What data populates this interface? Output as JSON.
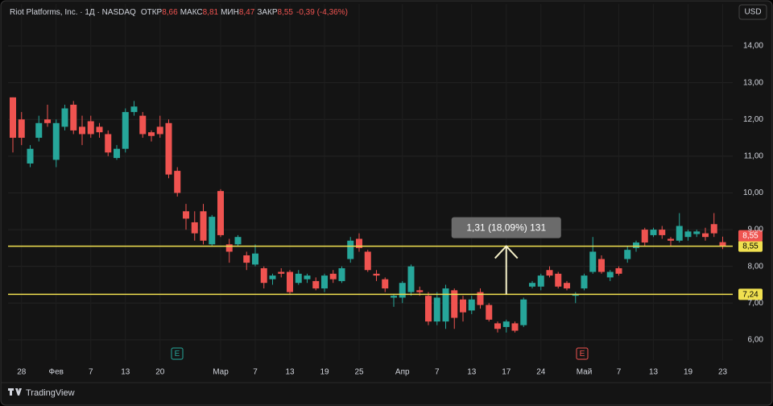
{
  "header": {
    "name": "Riot Platforms, Inc.",
    "interval": "1Д",
    "exchange": "NASDAQ",
    "stats": [
      {
        "label": "ОТКР",
        "value": "8,66"
      },
      {
        "label": "МАКС",
        "value": "8,81"
      },
      {
        "label": "МИН",
        "value": "8,47"
      },
      {
        "label": "ЗАКР",
        "value": "8,55"
      }
    ],
    "change": "-0,39 (-4,36%)",
    "currency": "USD"
  },
  "footer": {
    "brand": "TradingView"
  },
  "earnings": [
    {
      "label": "E",
      "color": "#26a69a"
    },
    {
      "label": "E",
      "color": "#ef5350"
    }
  ],
  "chart_data": {
    "type": "candlestick",
    "categories": [
      null,
      "28",
      null,
      null,
      null,
      "Фев",
      null,
      null,
      null,
      "7",
      null,
      null,
      null,
      "13",
      null,
      null,
      null,
      "20",
      null,
      null,
      null,
      null,
      null,
      null,
      "Мар",
      null,
      null,
      null,
      "7",
      null,
      null,
      null,
      "13",
      null,
      null,
      null,
      "19",
      null,
      null,
      null,
      "25",
      null,
      null,
      null,
      null,
      "Апр",
      null,
      null,
      null,
      "7",
      null,
      null,
      null,
      "13",
      null,
      null,
      null,
      "17",
      null,
      null,
      null,
      "24",
      null,
      null,
      null,
      null,
      "Май",
      null,
      null,
      null,
      "7",
      null,
      null,
      null,
      "13",
      null,
      null,
      null,
      "19",
      null,
      null,
      null,
      "23"
    ],
    "open": [
      12.6,
      12.0,
      10.8,
      11.5,
      12.0,
      10.9,
      11.8,
      12.4,
      11.8,
      11.95,
      11.8,
      11.6,
      10.95,
      11.2,
      12.2,
      12.1,
      11.65,
      11.8,
      11.9,
      10.6,
      9.5,
      9.2,
      9.5,
      8.6,
      10.05,
      8.6,
      8.6,
      8.3,
      8.05,
      7.95,
      7.65,
      7.85,
      7.85,
      7.55,
      7.65,
      7.6,
      7.4,
      7.8,
      7.6,
      8.2,
      8.75,
      8.4,
      7.8,
      7.65,
      7.15,
      7.15,
      7.3,
      7.35,
      7.2,
      6.5,
      6.5,
      7.35,
      7.1,
      6.8,
      7.3,
      6.95,
      6.45,
      6.35,
      6.45,
      6.4,
      7.45,
      7.45,
      7.9,
      7.8,
      7.55,
      7.2,
      7.4,
      7.85,
      8.2,
      7.7,
      7.95,
      8.2,
      8.5,
      9.0,
      8.85,
      9.0,
      8.75,
      8.7,
      8.8,
      8.88,
      8.9,
      9.15,
      8.66
    ],
    "high": [
      12.6,
      12.2,
      11.3,
      12.1,
      12.4,
      12.0,
      12.4,
      12.5,
      12.1,
      12.1,
      11.9,
      11.7,
      11.3,
      12.3,
      12.5,
      12.2,
      11.7,
      12.1,
      12.0,
      10.7,
      9.7,
      9.5,
      9.7,
      9.4,
      10.1,
      8.75,
      8.85,
      8.4,
      8.6,
      8.0,
      7.8,
      7.95,
      7.9,
      7.9,
      7.8,
      7.7,
      7.8,
      7.9,
      8.0,
      8.8,
      8.9,
      8.45,
      7.9,
      7.7,
      7.25,
      7.6,
      8.05,
      7.45,
      7.3,
      7.3,
      7.5,
      7.4,
      7.2,
      7.2,
      7.4,
      7.0,
      6.5,
      6.55,
      6.5,
      7.15,
      7.6,
      7.8,
      8.0,
      7.85,
      7.6,
      7.3,
      7.8,
      8.8,
      8.3,
      7.9,
      8.0,
      8.55,
      8.7,
      9.05,
      9.05,
      9.1,
      8.8,
      9.45,
      9.0,
      9.0,
      9.05,
      9.45,
      8.81
    ],
    "low": [
      11.1,
      11.3,
      10.7,
      11.4,
      11.8,
      10.7,
      11.7,
      11.6,
      11.3,
      11.5,
      11.5,
      11.0,
      10.9,
      11.1,
      12.1,
      11.5,
      11.4,
      11.5,
      10.4,
      9.9,
      9.0,
      8.7,
      8.6,
      8.55,
      8.8,
      8.1,
      8.55,
      7.9,
      8.0,
      7.4,
      7.5,
      7.7,
      7.25,
      7.5,
      7.55,
      7.35,
      7.3,
      7.55,
      7.55,
      8.1,
      8.4,
      7.85,
      7.6,
      7.3,
      6.9,
      7.0,
      7.2,
      7.2,
      6.4,
      6.4,
      6.3,
      6.3,
      6.5,
      6.7,
      6.85,
      6.5,
      6.2,
      6.2,
      6.2,
      6.35,
      7.4,
      7.35,
      7.7,
      7.4,
      7.35,
      7.0,
      7.35,
      7.8,
      7.8,
      7.6,
      7.75,
      8.1,
      8.4,
      8.55,
      8.8,
      8.75,
      8.55,
      8.65,
      8.7,
      8.8,
      8.7,
      8.8,
      8.47
    ],
    "close": [
      11.5,
      11.5,
      11.2,
      11.9,
      11.9,
      11.9,
      12.3,
      11.7,
      11.6,
      11.6,
      11.65,
      11.1,
      11.2,
      12.2,
      12.35,
      11.6,
      11.55,
      11.6,
      10.5,
      10.0,
      9.3,
      8.9,
      8.7,
      9.35,
      8.85,
      8.4,
      8.8,
      8.1,
      8.35,
      7.55,
      7.75,
      7.8,
      7.3,
      7.8,
      7.75,
      7.4,
      7.75,
      7.65,
      7.95,
      8.7,
      8.5,
      7.9,
      7.75,
      7.4,
      7.2,
      7.55,
      8.0,
      7.3,
      6.5,
      7.15,
      7.4,
      6.6,
      6.75,
      7.1,
      6.95,
      6.55,
      6.3,
      6.5,
      6.25,
      7.1,
      7.55,
      7.75,
      7.75,
      7.45,
      7.4,
      7.25,
      7.75,
      8.4,
      7.85,
      7.85,
      7.8,
      8.45,
      8.65,
      8.65,
      9.0,
      8.85,
      8.7,
      9.1,
      8.95,
      8.95,
      8.8,
      8.9,
      8.55
    ],
    "up_color": "#26a69a",
    "down_color": "#ef5350",
    "ylim": [
      5.45,
      15.14
    ],
    "yticks": [
      {
        "value": 6,
        "label": "6,00"
      },
      {
        "value": 7,
        "label": "7,00"
      },
      {
        "value": 8,
        "label": "8,00"
      },
      {
        "value": 9,
        "label": "9,00"
      },
      {
        "value": 10,
        "label": "10,00"
      },
      {
        "value": 11,
        "label": "11,00"
      },
      {
        "value": 12,
        "label": "12,00"
      },
      {
        "value": 13,
        "label": "13,00"
      },
      {
        "value": 14,
        "label": "14,00"
      }
    ],
    "grid": true,
    "hlines": [
      {
        "value": 8.55,
        "label": "8,55",
        "color": "#f0e050"
      },
      {
        "value": 7.24,
        "label": "7,24",
        "color": "#f0e050"
      }
    ],
    "last_price": {
      "value": 8.55,
      "label": "8,55",
      "color": "#ef5350"
    },
    "measure": {
      "text": "1,31 (18,09%) 131"
    }
  }
}
